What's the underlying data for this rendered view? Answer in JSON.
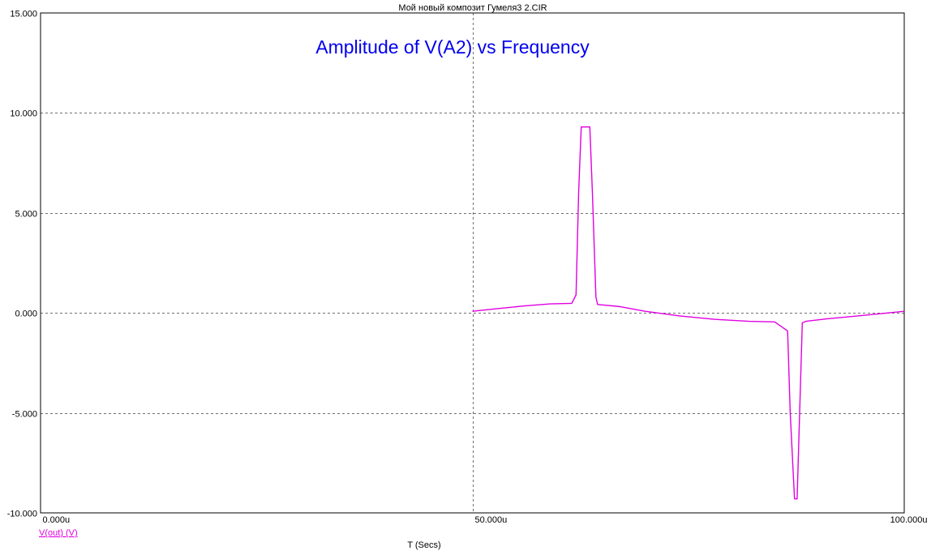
{
  "window_title": "Мой новый композит Гумеля3 2.CIR",
  "chart_data": {
    "type": "line",
    "title": "Amplitude of V(A2) vs Frequency",
    "xlabel": "T (Secs)",
    "ylabel": "",
    "xlim": [
      0,
      100
    ],
    "ylim": [
      -10,
      15
    ],
    "x_tick_labels": [
      "0.000u",
      "50.000u",
      "100.000u"
    ],
    "y_tick_labels": [
      "15.000",
      "10.000",
      "5.000",
      "0.000",
      "-5.000",
      "-10.000"
    ],
    "y_ticks": [
      15,
      10,
      5,
      0,
      -5,
      -10
    ],
    "x_ticks": [
      0,
      50,
      100
    ],
    "grid": true,
    "series": [
      {
        "name": "V(out) (V)",
        "color": "#e000e0",
        "x": [
          50.0,
          53,
          56,
          59,
          61.5,
          62.0,
          62.3,
          62.6,
          63.6,
          63.9,
          64.3,
          64.5,
          67,
          70,
          74,
          78,
          82,
          85,
          86.5,
          86.8,
          87.3,
          87.6,
          88.2,
          88.6,
          91,
          94,
          97,
          100
        ],
        "values": [
          0.08,
          0.22,
          0.35,
          0.45,
          0.48,
          0.9,
          6.0,
          9.3,
          9.3,
          6.0,
          0.8,
          0.42,
          0.32,
          0.08,
          -0.15,
          -0.32,
          -0.42,
          -0.45,
          -0.9,
          -5.0,
          -9.3,
          -9.3,
          -0.5,
          -0.42,
          -0.3,
          -0.18,
          -0.05,
          0.08
        ]
      }
    ]
  }
}
